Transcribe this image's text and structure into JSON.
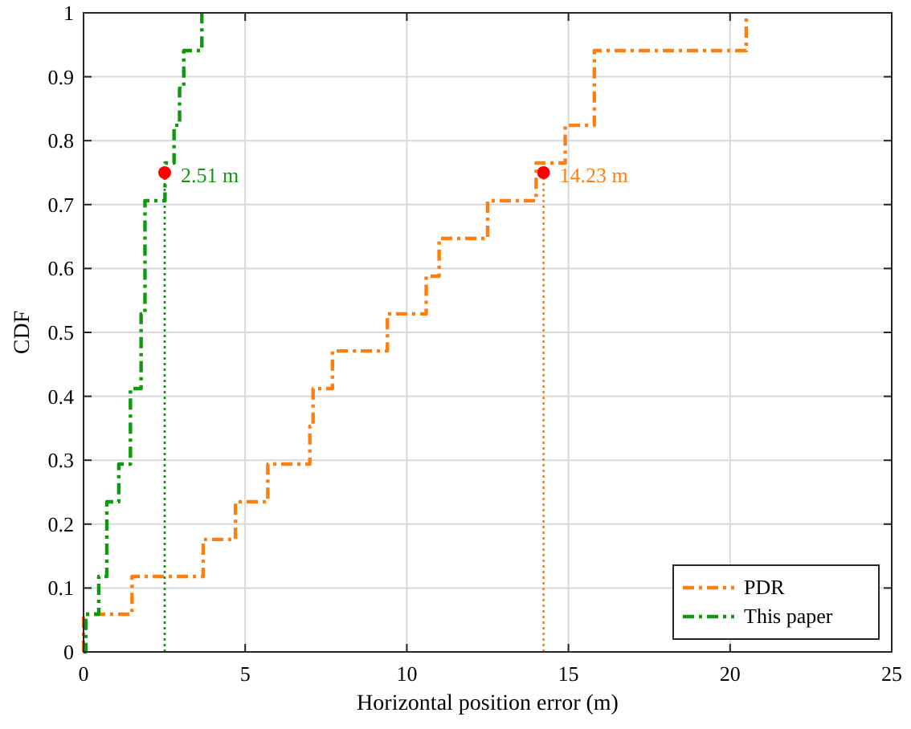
{
  "chart_data": {
    "type": "step",
    "xlabel": "Horizontal position error (m)",
    "ylabel": "CDF",
    "xlim": [
      0,
      25
    ],
    "xticks": [
      0,
      5,
      10,
      15,
      20,
      25
    ],
    "ylim": [
      0,
      1
    ],
    "yticks": [
      0,
      0.1,
      0.2,
      0.3,
      0.4,
      0.5,
      0.6,
      0.7,
      0.8,
      0.9,
      1
    ],
    "grid": true,
    "legend": "bottom right",
    "line_style": "dashed",
    "series": [
      {
        "name": "PDR",
        "color": "#ff7f0e",
        "x": [
          0,
          0,
          1.5,
          3.7,
          4.7,
          5.7,
          7.0,
          7.1,
          7.7,
          9.4,
          10.6,
          11.0,
          12.5,
          14.0,
          14.9,
          15.8,
          20.5
        ],
        "values": [
          0,
          0.059,
          0.118,
          0.176,
          0.235,
          0.294,
          0.353,
          0.412,
          0.471,
          0.529,
          0.588,
          0.647,
          0.706,
          0.765,
          0.824,
          0.941,
          1.0
        ]
      },
      {
        "name": "This paper",
        "color": "#0e9a0e",
        "x": [
          0,
          0.07,
          0.47,
          0.72,
          1.09,
          1.45,
          1.78,
          1.9,
          2.52,
          2.8,
          2.97,
          3.1,
          3.66
        ],
        "values": [
          0,
          0.059,
          0.118,
          0.235,
          0.294,
          0.412,
          0.529,
          0.706,
          0.765,
          0.824,
          0.882,
          0.941,
          1.0
        ]
      },
      {
        "type": "line",
        "color": "#0e9a0e",
        "line_style": "dotted",
        "x": [
          2.51,
          2.51
        ],
        "values": [
          0,
          0.75
        ]
      },
      {
        "type": "line",
        "color": "#ff7f0e",
        "line_style": "dotted",
        "x": [
          14.23,
          14.23
        ],
        "values": [
          0,
          0.75
        ]
      },
      {
        "type": "scatter",
        "color": "#ff0000",
        "marker": "circle",
        "x": [
          2.51,
          14.23
        ],
        "values": [
          0.75,
          0.75
        ]
      }
    ],
    "annotations": [
      {
        "text": "2.51 m",
        "x": 2.51,
        "y": 0.75
      },
      {
        "text": "14.23 m",
        "x": 14.23,
        "y": 0.75
      }
    ]
  }
}
